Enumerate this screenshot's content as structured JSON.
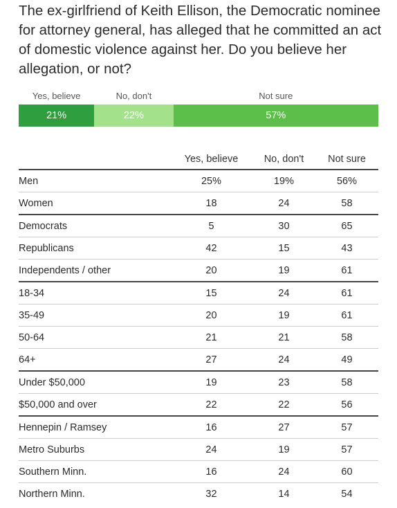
{
  "question": "The ex-girlfriend of Keith Ellison, the Democratic nominee for attorney general, has alleged that he committed an act of domestic violence against her. Do you believe her allegation, or not?",
  "colors": {
    "yes_believe": "#2e9e3e",
    "no_dont": "#a3e28a",
    "not_sure": "#5cbf4a"
  },
  "chart_data": [
    {
      "type": "bar",
      "stacked": true,
      "orientation": "horizontal",
      "categories": [
        "Yes, believe",
        "No, don't",
        "Not sure"
      ],
      "values": [
        21,
        22,
        57
      ],
      "value_labels": [
        "21%",
        "22%",
        "57%"
      ],
      "unit": "%"
    },
    {
      "type": "table",
      "columns": [
        "",
        "Yes, believe",
        "No, don't",
        "Not sure"
      ],
      "rows": [
        {
          "label": "Men",
          "values": [
            "25%",
            "19%",
            "56%"
          ],
          "group_end": false
        },
        {
          "label": "Women",
          "values": [
            "18",
            "24",
            "58"
          ],
          "group_end": true
        },
        {
          "label": "Democrats",
          "values": [
            "5",
            "30",
            "65"
          ],
          "group_end": false
        },
        {
          "label": "Republicans",
          "values": [
            "42",
            "15",
            "43"
          ],
          "group_end": false
        },
        {
          "label": "Independents / other",
          "values": [
            "20",
            "19",
            "61"
          ],
          "group_end": true
        },
        {
          "label": "18-34",
          "values": [
            "15",
            "24",
            "61"
          ],
          "group_end": false
        },
        {
          "label": "35-49",
          "values": [
            "20",
            "19",
            "61"
          ],
          "group_end": false
        },
        {
          "label": "50-64",
          "values": [
            "21",
            "21",
            "58"
          ],
          "group_end": false
        },
        {
          "label": "64+",
          "values": [
            "27",
            "24",
            "49"
          ],
          "group_end": true
        },
        {
          "label": "Under $50,000",
          "values": [
            "19",
            "23",
            "58"
          ],
          "group_end": false
        },
        {
          "label": "$50,000 and over",
          "values": [
            "22",
            "22",
            "56"
          ],
          "group_end": true
        },
        {
          "label": "Hennepin / Ramsey",
          "values": [
            "16",
            "27",
            "57"
          ],
          "group_end": false
        },
        {
          "label": "Metro Suburbs",
          "values": [
            "24",
            "19",
            "57"
          ],
          "group_end": false
        },
        {
          "label": "Southern Minn.",
          "values": [
            "16",
            "24",
            "60"
          ],
          "group_end": false
        },
        {
          "label": "Northern Minn.",
          "values": [
            "32",
            "14",
            "54"
          ],
          "group_end": false
        }
      ]
    }
  ]
}
